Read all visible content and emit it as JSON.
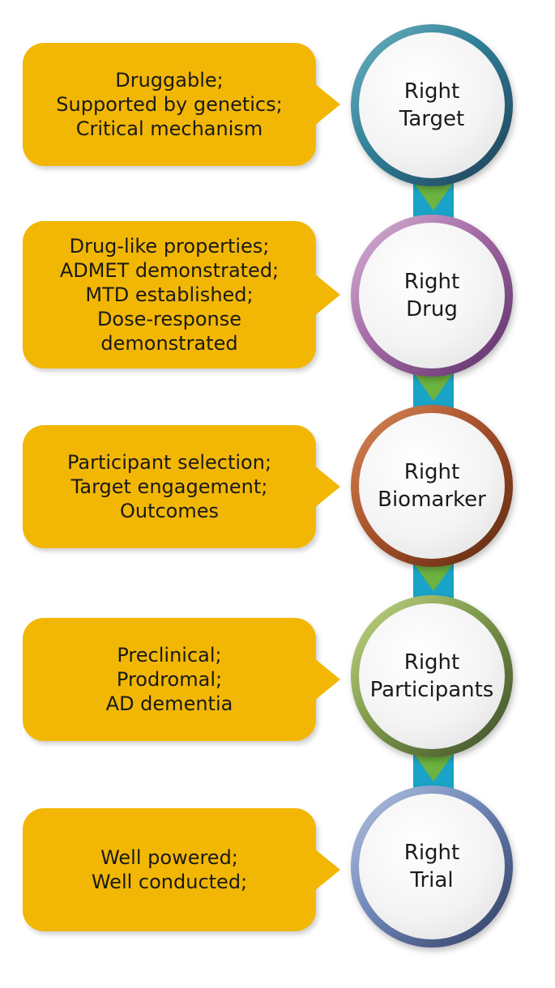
{
  "stages": [
    {
      "box_lines": [
        "Druggable;",
        "Supported by genetics;",
        "Critical mechanism"
      ],
      "circle_lines": [
        "Right",
        "Target"
      ]
    },
    {
      "box_lines": [
        "Drug-like properties;",
        "ADMET demonstrated;",
        "MTD established;",
        "Dose-response",
        "demonstrated"
      ],
      "circle_lines": [
        "Right",
        "Drug"
      ]
    },
    {
      "box_lines": [
        "Participant selection;",
        "Target engagement;",
        "Outcomes"
      ],
      "circle_lines": [
        "Right",
        "Biomarker"
      ]
    },
    {
      "box_lines": [
        "Preclinical;",
        "Prodromal;",
        "AD dementia"
      ],
      "circle_lines": [
        "Right",
        "Participants"
      ]
    },
    {
      "box_lines": [
        "Well powered;",
        "Well conducted;"
      ],
      "circle_lines": [
        "Right",
        "Trial"
      ]
    }
  ],
  "colors": {
    "box_fill": "#f2b705",
    "connector_bar": "#1aa3c8",
    "connector_arrow": "#6cb33f"
  }
}
